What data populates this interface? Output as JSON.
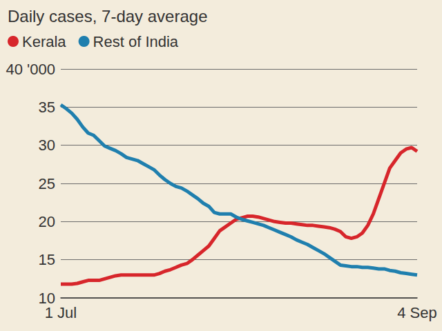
{
  "chart_data": {
    "type": "line",
    "title": "Daily cases, 7-day average",
    "categories": [
      "1 Jul",
      null,
      null,
      null,
      null,
      null,
      null,
      null,
      null,
      null,
      null,
      null,
      null,
      null,
      null,
      null,
      null,
      null,
      null,
      null,
      null,
      null,
      null,
      null,
      null,
      null,
      null,
      null,
      null,
      null,
      null,
      null,
      null,
      null,
      null,
      null,
      null,
      null,
      null,
      null,
      null,
      null,
      null,
      null,
      null,
      null,
      null,
      null,
      null,
      null,
      null,
      null,
      null,
      null,
      null,
      null,
      null,
      null,
      null,
      null,
      null,
      null,
      null,
      null,
      null,
      "4 Sep"
    ],
    "series": [
      {
        "name": "Kerala",
        "color": "#d7262b",
        "values": [
          11.8,
          11.8,
          11.8,
          11.9,
          12.1,
          12.3,
          12.3,
          12.3,
          12.5,
          12.7,
          12.9,
          13.0,
          13.0,
          13.0,
          13.0,
          13.0,
          13.0,
          13.0,
          13.2,
          13.5,
          13.7,
          14.0,
          14.3,
          14.5,
          15.0,
          15.6,
          16.2,
          16.8,
          17.8,
          18.8,
          19.3,
          19.8,
          20.3,
          20.5,
          20.7,
          20.7,
          20.6,
          20.4,
          20.2,
          20.0,
          19.9,
          19.8,
          19.8,
          19.7,
          19.6,
          19.5,
          19.5,
          19.4,
          19.3,
          19.2,
          19.0,
          18.7,
          18.0,
          17.8,
          18.0,
          18.5,
          19.5,
          21.0,
          23.0,
          25.0,
          27.0,
          28.0,
          29.0,
          29.5,
          29.7,
          29.2
        ]
      },
      {
        "name": "Rest of India",
        "color": "#1f7fae",
        "values": [
          35.3,
          34.8,
          34.2,
          33.4,
          32.4,
          31.6,
          31.3,
          30.6,
          29.9,
          29.6,
          29.3,
          28.9,
          28.4,
          28.2,
          28.0,
          27.6,
          27.2,
          26.8,
          26.1,
          25.5,
          25.0,
          24.6,
          24.4,
          24.0,
          23.5,
          23.0,
          22.4,
          22.0,
          21.2,
          21.0,
          21.0,
          21.0,
          20.6,
          20.3,
          20.1,
          19.9,
          19.7,
          19.5,
          19.2,
          18.9,
          18.6,
          18.3,
          18.0,
          17.6,
          17.3,
          17.0,
          16.6,
          16.2,
          15.8,
          15.3,
          14.8,
          14.3,
          14.2,
          14.1,
          14.1,
          14.0,
          14.0,
          13.9,
          13.8,
          13.8,
          13.6,
          13.5,
          13.3,
          13.2,
          13.1,
          13.0
        ]
      }
    ],
    "ylim": [
      10,
      40
    ],
    "yticks": [
      10,
      15,
      20,
      25,
      30,
      35,
      {
        "value": 40,
        "label": "40 '000"
      }
    ],
    "grid": true,
    "legend": "top-left"
  }
}
